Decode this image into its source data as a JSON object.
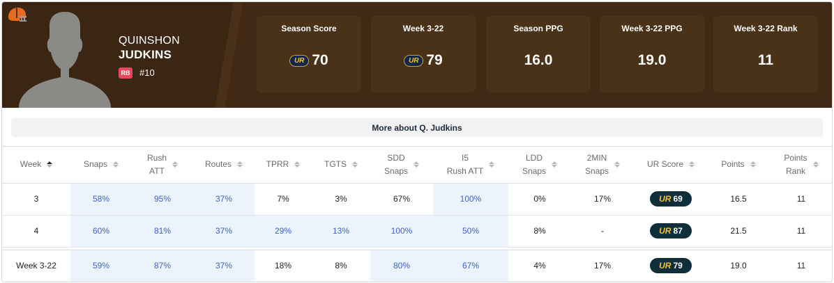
{
  "player": {
    "first_name": "QUINSHON",
    "last_name": "JUDKINS",
    "position": "RB",
    "jersey": "#10",
    "team_logo_icon": "browns-helmet-icon"
  },
  "stat_cards": [
    {
      "title": "Season Score",
      "value": "70",
      "ur_badge": "UR"
    },
    {
      "title": "Week 3-22",
      "value": "79",
      "ur_badge": "UR"
    },
    {
      "title": "Season PPG",
      "value": "16.0"
    },
    {
      "title": "Week 3-22 PPG",
      "value": "19.0"
    },
    {
      "title": "Week 3-22 Rank",
      "value": "11"
    }
  ],
  "more_link": "More about Q. Judkins",
  "table": {
    "headers": [
      {
        "line1": "Week",
        "line2": ""
      },
      {
        "line1": "Snaps",
        "line2": ""
      },
      {
        "line1": "Rush",
        "line2": "ATT"
      },
      {
        "line1": "Routes",
        "line2": ""
      },
      {
        "line1": "TPRR",
        "line2": ""
      },
      {
        "line1": "TGTS",
        "line2": ""
      },
      {
        "line1": "SDD",
        "line2": "Snaps"
      },
      {
        "line1": "I5",
        "line2": "Rush ATT"
      },
      {
        "line1": "LDD",
        "line2": "Snaps"
      },
      {
        "line1": "2MIN",
        "line2": "Snaps"
      },
      {
        "line1": "UR Score",
        "line2": ""
      },
      {
        "line1": "Points",
        "line2": ""
      },
      {
        "line1": "Points",
        "line2": "Rank"
      }
    ],
    "rows": [
      {
        "week": "3",
        "snaps": "58%",
        "rush_att": "95%",
        "routes": "37%",
        "tprr": "7%",
        "tgts": "3%",
        "sdd": "67%",
        "i5": "100%",
        "ldd": "0%",
        "two_min": "17%",
        "ur_badge": "UR",
        "ur_score": "69",
        "points": "16.5",
        "rank": "11"
      },
      {
        "week": "4",
        "snaps": "60%",
        "rush_att": "81%",
        "routes": "37%",
        "tprr": "29%",
        "tgts": "13%",
        "sdd": "100%",
        "i5": "50%",
        "ldd": "8%",
        "two_min": "-",
        "ur_badge": "UR",
        "ur_score": "87",
        "points": "21.5",
        "rank": "11"
      }
    ],
    "summary": {
      "week": "Week 3-22",
      "snaps": "59%",
      "rush_att": "87%",
      "routes": "37%",
      "tprr": "18%",
      "tgts": "8%",
      "sdd": "80%",
      "i5": "67%",
      "ldd": "4%",
      "two_min": "17%",
      "ur_badge": "UR",
      "ur_score": "79",
      "points": "19.0",
      "rank": "11"
    }
  },
  "colors": {
    "header_bg": "#3b2513",
    "card_bg": "#4a3219",
    "position_badge": "#e8475e",
    "highlight_cell": "#edf3fd",
    "highlight_text": "#3b63c9",
    "ur_pill": "#0f2f3a",
    "ur_gold": "#f2c12e"
  }
}
